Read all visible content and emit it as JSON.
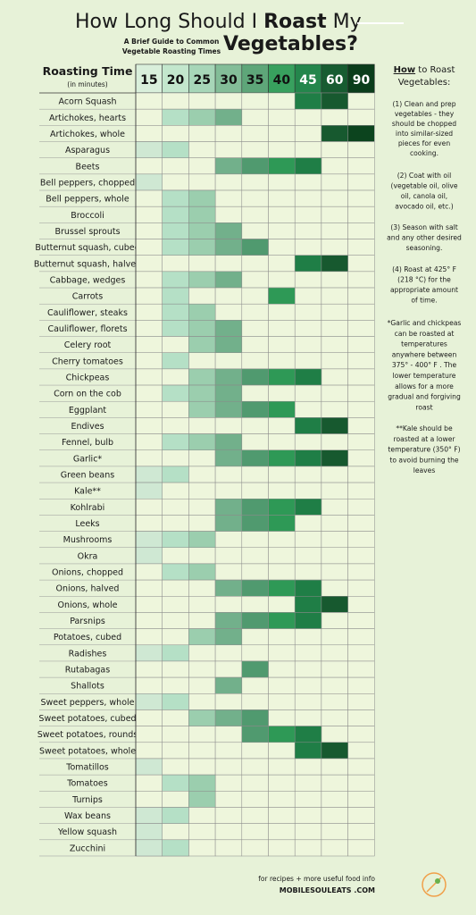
{
  "header": {
    "title_a": "How Long Should I",
    "title_b": "Roast",
    "title_c": "My",
    "title_d": "Vegetables?",
    "subtitle_1": "A Brief Guide to Common",
    "subtitle_2": "Vegetable Roasting Times"
  },
  "table": {
    "label_title": "Roasting Time",
    "label_sub": "(in minutes)",
    "columns": [
      15,
      20,
      25,
      30,
      35,
      40,
      45,
      60,
      90
    ],
    "column_colors": [
      "#cfe8d3",
      "#b5e0c6",
      "#9bceae",
      "#72b08b",
      "#509a6f",
      "#2e9956",
      "#1f7e46",
      "#17592f",
      "#0c441e"
    ],
    "header_colors": [
      "#d9efdb",
      "#c3e7cd",
      "#a7d6b8",
      "#83bd98",
      "#5ea679",
      "#38a05e",
      "#24864c",
      "#175c31",
      "#0b3d1b"
    ],
    "rows": [
      {
        "name": "Acorn Squash",
        "times": [
          45,
          60
        ]
      },
      {
        "name": "Artichokes, hearts",
        "times": [
          20,
          25,
          30
        ]
      },
      {
        "name": "Artichokes, whole",
        "times": [
          60,
          90
        ]
      },
      {
        "name": "Asparagus",
        "times": [
          15,
          20
        ]
      },
      {
        "name": "Beets",
        "times": [
          30,
          35,
          40,
          45
        ]
      },
      {
        "name": "Bell peppers, chopped",
        "times": [
          15
        ]
      },
      {
        "name": "Bell peppers, whole",
        "times": [
          20,
          25
        ]
      },
      {
        "name": "Broccoli",
        "times": [
          20,
          25
        ]
      },
      {
        "name": "Brussel sprouts",
        "times": [
          20,
          25,
          30
        ]
      },
      {
        "name": "Butternut squash, cubed",
        "times": [
          20,
          25,
          30,
          35
        ]
      },
      {
        "name": "Butternut squash, halved",
        "times": [
          45,
          60
        ]
      },
      {
        "name": "Cabbage, wedges",
        "times": [
          20,
          25,
          30
        ]
      },
      {
        "name": "Carrots",
        "times": [
          20,
          40
        ]
      },
      {
        "name": "Cauliflower, steaks",
        "times": [
          20,
          25
        ]
      },
      {
        "name": "Cauliflower, florets",
        "times": [
          20,
          25,
          30
        ]
      },
      {
        "name": "Celery root",
        "times": [
          25,
          30
        ]
      },
      {
        "name": "Cherry tomatoes",
        "times": [
          20
        ]
      },
      {
        "name": "Chickpeas",
        "times": [
          25,
          30,
          35,
          40,
          45
        ]
      },
      {
        "name": "Corn on the cob",
        "times": [
          20,
          25,
          30
        ]
      },
      {
        "name": "Eggplant",
        "times": [
          25,
          30,
          35,
          40
        ]
      },
      {
        "name": "Endives",
        "times": [
          45,
          60
        ]
      },
      {
        "name": "Fennel, bulb",
        "times": [
          20,
          25,
          30
        ]
      },
      {
        "name": "Garlic*",
        "times": [
          30,
          35,
          40,
          45,
          60
        ]
      },
      {
        "name": "Green beans",
        "times": [
          15,
          20
        ]
      },
      {
        "name": "Kale**",
        "times": [
          15
        ]
      },
      {
        "name": "Kohlrabi",
        "times": [
          30,
          35,
          40,
          45
        ]
      },
      {
        "name": "Leeks",
        "times": [
          30,
          35,
          40
        ]
      },
      {
        "name": "Mushrooms",
        "times": [
          15,
          20,
          25
        ]
      },
      {
        "name": "Okra",
        "times": [
          15
        ]
      },
      {
        "name": "Onions, chopped",
        "times": [
          20,
          25
        ]
      },
      {
        "name": "Onions, halved",
        "times": [
          30,
          35,
          40,
          45
        ]
      },
      {
        "name": "Onions, whole",
        "times": [
          45,
          60
        ]
      },
      {
        "name": "Parsnips",
        "times": [
          30,
          35,
          40,
          45
        ]
      },
      {
        "name": "Potatoes, cubed",
        "times": [
          25,
          30
        ]
      },
      {
        "name": "Radishes",
        "times": [
          15,
          20
        ]
      },
      {
        "name": "Rutabagas",
        "times": [
          35
        ]
      },
      {
        "name": "Shallots",
        "times": [
          30
        ]
      },
      {
        "name": "Sweet peppers, whole",
        "times": [
          15,
          20
        ]
      },
      {
        "name": "Sweet potatoes, cubed",
        "times": [
          25,
          30,
          35
        ]
      },
      {
        "name": "Sweet potatoes, rounds",
        "times": [
          35,
          40,
          45
        ]
      },
      {
        "name": "Sweet potatoes, whole",
        "times": [
          45,
          60
        ]
      },
      {
        "name": "Tomatillos",
        "times": [
          15
        ]
      },
      {
        "name": "Tomatoes",
        "times": [
          20,
          25
        ]
      },
      {
        "name": "Turnips",
        "times": [
          25
        ]
      },
      {
        "name": "Wax beans",
        "times": [
          15,
          20
        ]
      },
      {
        "name": "Yellow squash",
        "times": [
          15
        ]
      },
      {
        "name": "Zucchini",
        "times": [
          15,
          20
        ]
      }
    ]
  },
  "notes": {
    "title_a": "How",
    "title_b": "to Roast",
    "title_c": "Vegetables:",
    "paragraphs": [
      [
        "(1) Clean  and prep",
        "vegetables - they",
        "should be chopped",
        "into similar-sized",
        "pieces for even",
        "cooking."
      ],
      [
        "(2) Coat with oil",
        "(vegetable oil, olive",
        "oil, canola oil,",
        "avocado oil, etc.)"
      ],
      [
        "(3) Season with salt",
        "and any other desired",
        "seasoning."
      ],
      [
        "(4) Roast at 425° F",
        "(218 °C) for the",
        "appropriate amount",
        "of time."
      ],
      [
        "*Garlic and chickpeas",
        "can be roasted at",
        "temperatures",
        "anywhere between",
        "375° - 400° F . The",
        "lower temperature",
        "allows for a more",
        "gradual and forgiving",
        "roast"
      ],
      [
        "**Kale should be",
        "roasted at a lower",
        "temperature (350° F)",
        "to avoid burning the",
        "leaves"
      ]
    ]
  },
  "footer": {
    "line_1": "for recipes + more useful food info",
    "line_2": "MOBILESOULEATS .COM"
  }
}
